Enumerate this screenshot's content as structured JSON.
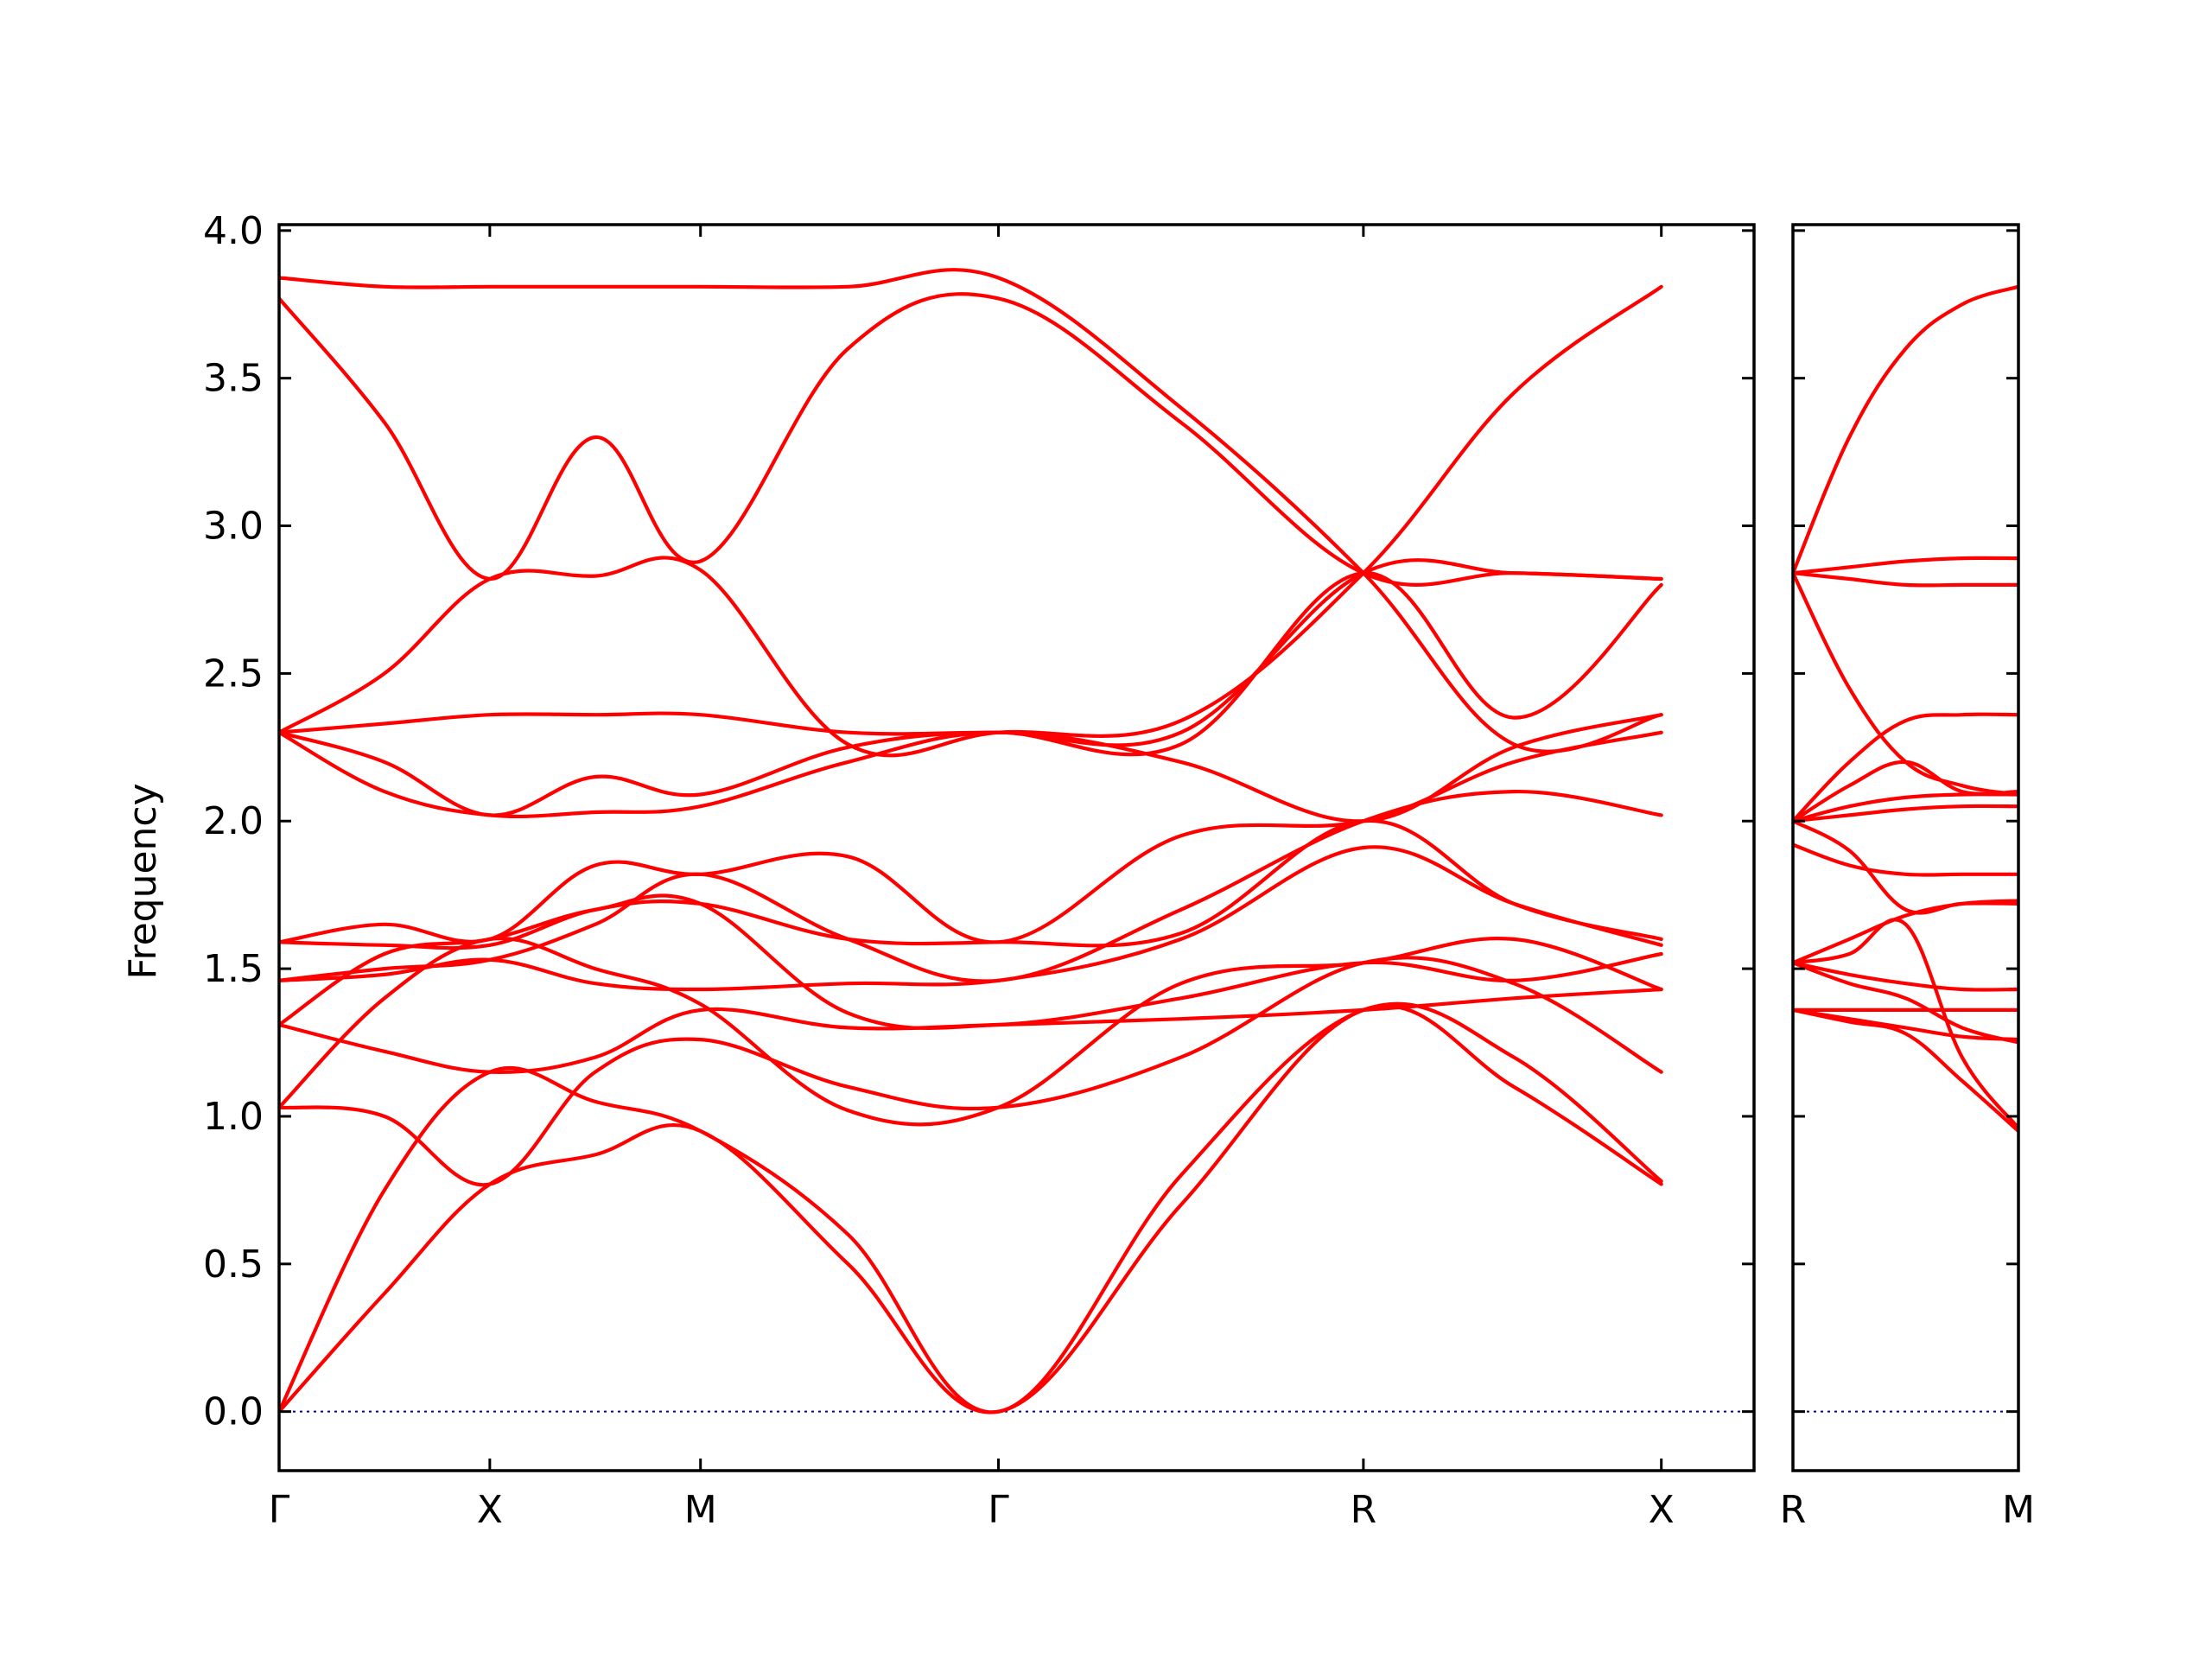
{
  "chart_data": {
    "type": "line",
    "ylabel": "Frequency",
    "ylim": [
      -0.2,
      4.02
    ],
    "yticks": [
      "0.0",
      "0.5",
      "1.0",
      "1.5",
      "2.0",
      "2.5",
      "3.0",
      "3.5",
      "4.0"
    ],
    "ytick_values": [
      0.0,
      0.5,
      1.0,
      1.5,
      2.0,
      2.5,
      3.0,
      3.5,
      4.0
    ],
    "grid": false,
    "colors": {
      "bands": "#ff0000",
      "zero_line": "#00008b"
    },
    "panels": [
      {
        "xlim": [
          0,
          3.5
        ],
        "x_ticks": [
          {
            "x": 0,
            "label": "Γ"
          },
          {
            "x": 0.5,
            "label": "X"
          },
          {
            "x": 1.0,
            "label": "M"
          },
          {
            "x": 1.707,
            "label": "Γ"
          },
          {
            "x": 2.573,
            "label": "R"
          },
          {
            "x": 3.28,
            "label": "X"
          }
        ],
        "series": [
          {
            "x": [
              0,
              0.25,
              0.5,
              0.75,
              1.0,
              1.35,
              1.707,
              2.14,
              2.573,
              2.93,
              3.28
            ],
            "y": [
              0,
              0.4,
              0.77,
              0.87,
              0.95,
              0.5,
              0,
              0.7,
              1.36,
              1.1,
              0.77
            ]
          },
          {
            "x": [
              0,
              0.25,
              0.5,
              0.75,
              1.0,
              1.35,
              1.707,
              2.14,
              2.573,
              2.93,
              3.28
            ],
            "y": [
              0,
              0.75,
              1.15,
              1.05,
              0.95,
              0.6,
              0,
              0.8,
              1.36,
              1.2,
              0.78
            ]
          },
          {
            "x": [
              0,
              0.25,
              0.5,
              0.75,
              1.0,
              1.35,
              1.707,
              2.14,
              2.573,
              2.93,
              3.28
            ],
            "y": [
              1.03,
              1.0,
              0.77,
              1.15,
              1.26,
              1.1,
              1.03,
              1.2,
              1.52,
              1.45,
              1.15
            ]
          },
          {
            "x": [
              0,
              0.25,
              0.5,
              0.75,
              1.0,
              1.35,
              1.707,
              2.14,
              2.573,
              2.93,
              3.28
            ],
            "y": [
              1.03,
              1.4,
              1.6,
              1.5,
              1.38,
              1.02,
              1.03,
              1.45,
              1.52,
              1.6,
              1.43
            ]
          },
          {
            "x": [
              0,
              0.25,
              0.5,
              0.75,
              1.0,
              1.35,
              1.707,
              2.14,
              2.573,
              2.93,
              3.28
            ],
            "y": [
              1.31,
              1.22,
              1.15,
              1.2,
              1.36,
              1.3,
              1.31,
              1.33,
              1.36,
              1.4,
              1.43
            ]
          },
          {
            "x": [
              0,
              0.25,
              0.5,
              0.75,
              1.0,
              1.35,
              1.707,
              2.14,
              2.573,
              2.93,
              3.28
            ],
            "y": [
              1.31,
              1.55,
              1.6,
              1.7,
              1.72,
              1.35,
              1.31,
              1.4,
              1.52,
              1.46,
              1.55
            ]
          },
          {
            "x": [
              0,
              0.25,
              0.5,
              0.75,
              1.0,
              1.35,
              1.707,
              2.14,
              2.573,
              2.93,
              3.28
            ],
            "y": [
              1.46,
              1.48,
              1.53,
              1.45,
              1.43,
              1.45,
              1.46,
              1.6,
              1.91,
              1.72,
              1.58
            ]
          },
          {
            "x": [
              0,
              0.25,
              0.5,
              0.75,
              1.0,
              1.35,
              1.707,
              2.14,
              2.573,
              2.93,
              3.28
            ],
            "y": [
              1.46,
              1.5,
              1.53,
              1.65,
              1.82,
              1.6,
              1.46,
              1.7,
              2.0,
              2.1,
              2.02
            ]
          },
          {
            "x": [
              0,
              0.25,
              0.5,
              0.75,
              1.0,
              1.35,
              1.707,
              2.14,
              2.573,
              2.93,
              3.28
            ],
            "y": [
              1.59,
              1.58,
              1.58,
              1.7,
              1.72,
              1.6,
              1.59,
              1.62,
              2.0,
              1.72,
              1.6
            ]
          },
          {
            "x": [
              0,
              0.25,
              0.5,
              0.75,
              1.0,
              1.35,
              1.707,
              2.14,
              2.573,
              2.93,
              3.28
            ],
            "y": [
              1.59,
              1.65,
              1.6,
              1.85,
              1.82,
              1.88,
              1.59,
              1.95,
              2.0,
              2.2,
              2.3
            ]
          },
          {
            "x": [
              0,
              0.25,
              0.5,
              0.75,
              1.0,
              1.35,
              1.707,
              2.14,
              2.573,
              2.93,
              3.28
            ],
            "y": [
              2.3,
              2.1,
              2.02,
              2.03,
              2.05,
              2.2,
              2.3,
              2.2,
              2.0,
              2.25,
              2.36
            ]
          },
          {
            "x": [
              0,
              0.25,
              0.5,
              0.75,
              1.0,
              1.35,
              1.707,
              2.14,
              2.573,
              2.93,
              3.28
            ],
            "y": [
              2.3,
              2.2,
              2.02,
              2.15,
              2.09,
              2.25,
              2.3,
              2.26,
              2.84,
              2.35,
              2.8
            ]
          },
          {
            "x": [
              0,
              0.25,
              0.5,
              0.75,
              1.0,
              1.35,
              1.707,
              2.14,
              2.573,
              2.93,
              3.28
            ],
            "y": [
              2.3,
              2.33,
              2.36,
              2.36,
              2.36,
              2.3,
              2.3,
              2.3,
              2.84,
              2.84,
              2.82
            ]
          },
          {
            "x": [
              0,
              0.25,
              0.5,
              0.75,
              1.0,
              1.35,
              1.707,
              2.14,
              2.573,
              2.93,
              3.28
            ],
            "y": [
              2.3,
              2.5,
              2.82,
              2.83,
              2.85,
              2.26,
              2.3,
              2.34,
              2.84,
              3.45,
              3.81
            ]
          },
          {
            "x": [
              0,
              0.25,
              0.5,
              0.75,
              1.0,
              1.35,
              1.707,
              2.14,
              2.573,
              2.93,
              3.28
            ],
            "y": [
              3.77,
              3.35,
              2.82,
              3.3,
              2.88,
              3.6,
              3.77,
              3.35,
              2.84,
              2.84,
              2.82
            ]
          },
          {
            "x": [
              0,
              0.25,
              0.5,
              0.75,
              1.0,
              1.35,
              1.707,
              2.14,
              2.573,
              2.93,
              3.28
            ],
            "y": [
              3.84,
              3.81,
              3.81,
              3.81,
              3.81,
              3.81,
              3.84,
              3.4,
              2.84,
              2.26,
              2.36
            ]
          }
        ]
      },
      {
        "xlim": [
          0,
          0.5
        ],
        "x_ticks": [
          {
            "x": 0,
            "label": "R"
          },
          {
            "x": 0.5,
            "label": "M"
          }
        ],
        "series": [
          {
            "x": [
              0,
              0.125,
              0.25,
              0.375,
              0.5
            ],
            "y": [
              1.36,
              1.32,
              1.28,
              1.12,
              0.95
            ]
          },
          {
            "x": [
              0,
              0.125,
              0.25,
              0.375,
              0.5
            ],
            "y": [
              1.36,
              1.36,
              1.36,
              1.36,
              1.36
            ]
          },
          {
            "x": [
              0,
              0.125,
              0.25,
              0.375,
              0.5
            ],
            "y": [
              1.36,
              1.33,
              1.3,
              1.27,
              1.26
            ]
          },
          {
            "x": [
              0,
              0.125,
              0.25,
              0.375,
              0.5
            ],
            "y": [
              1.52,
              1.55,
              1.65,
              1.2,
              0.96
            ]
          },
          {
            "x": [
              0,
              0.125,
              0.25,
              0.375,
              0.5
            ],
            "y": [
              1.52,
              1.45,
              1.4,
              1.3,
              1.25
            ]
          },
          {
            "x": [
              0,
              0.125,
              0.25,
              0.375,
              0.5
            ],
            "y": [
              1.52,
              1.48,
              1.45,
              1.43,
              1.43
            ]
          },
          {
            "x": [
              0,
              0.125,
              0.25,
              0.375,
              0.5
            ],
            "y": [
              1.52,
              1.6,
              1.68,
              1.72,
              1.73
            ]
          },
          {
            "x": [
              0,
              0.125,
              0.25,
              0.375,
              0.5
            ],
            "y": [
              1.92,
              1.85,
              1.82,
              1.82,
              1.82
            ]
          },
          {
            "x": [
              0,
              0.125,
              0.25,
              0.375,
              0.5
            ],
            "y": [
              2.0,
              1.9,
              1.7,
              1.72,
              1.72
            ]
          },
          {
            "x": [
              0,
              0.125,
              0.25,
              0.375,
              0.5
            ],
            "y": [
              2.0,
              2.02,
              2.04,
              2.05,
              2.05
            ]
          },
          {
            "x": [
              0,
              0.125,
              0.25,
              0.375,
              0.5
            ],
            "y": [
              2.0,
              2.12,
              2.2,
              2.1,
              2.1
            ]
          },
          {
            "x": [
              0,
              0.125,
              0.25,
              0.375,
              0.5
            ],
            "y": [
              2.0,
              2.05,
              2.08,
              2.09,
              2.09
            ]
          },
          {
            "x": [
              0,
              0.125,
              0.25,
              0.375,
              0.5
            ],
            "y": [
              2.0,
              2.2,
              2.34,
              2.36,
              2.36
            ]
          },
          {
            "x": [
              0,
              0.125,
              0.25,
              0.375,
              0.5
            ],
            "y": [
              2.84,
              2.86,
              2.88,
              2.89,
              2.89
            ]
          },
          {
            "x": [
              0,
              0.125,
              0.25,
              0.375,
              0.5
            ],
            "y": [
              2.84,
              2.82,
              2.8,
              2.8,
              2.8
            ]
          },
          {
            "x": [
              0,
              0.125,
              0.25,
              0.375,
              0.5
            ],
            "y": [
              2.84,
              3.3,
              3.6,
              3.75,
              3.81
            ]
          },
          {
            "x": [
              0,
              0.125,
              0.25,
              0.375,
              0.5
            ],
            "y": [
              2.84,
              2.45,
              2.2,
              2.12,
              2.09
            ]
          }
        ]
      }
    ]
  }
}
